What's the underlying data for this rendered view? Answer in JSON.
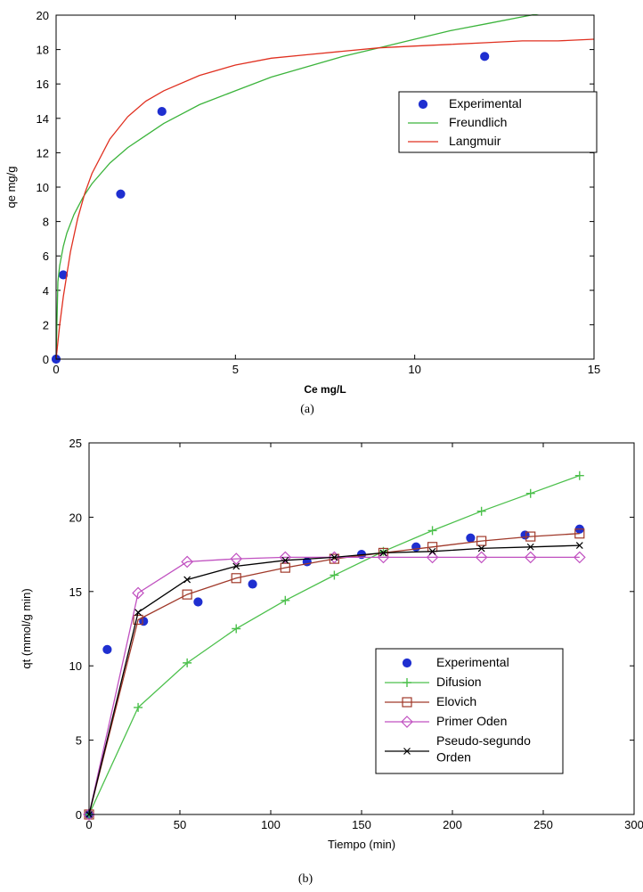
{
  "chart_data": [
    {
      "type": "scatter",
      "xlabel": "Ce mg/L",
      "ylabel": "qe mg/g",
      "xlim": [
        0,
        15
      ],
      "ylim": [
        0,
        20
      ],
      "xticks": [
        0,
        5,
        10,
        15
      ],
      "yticks": [
        0,
        2,
        4,
        6,
        8,
        10,
        12,
        14,
        16,
        18,
        20
      ],
      "caption": "(a)",
      "legend_position": "center-right",
      "series": [
        {
          "name": "Experimental",
          "kind": "points",
          "color": "#1f2fd0",
          "x": [
            0.0,
            0.2,
            1.8,
            2.95,
            11.95
          ],
          "y": [
            0.0,
            4.9,
            9.6,
            14.4,
            17.6
          ]
        },
        {
          "name": "Freundlich",
          "kind": "line",
          "color": "#3cb43c",
          "x": [
            0.0,
            0.05,
            0.1,
            0.2,
            0.3,
            0.5,
            0.75,
            1.0,
            1.5,
            2.0,
            2.5,
            3.0,
            4.0,
            5.0,
            6.0,
            7.0,
            8.0,
            9.0,
            10.0,
            11.0,
            12.0,
            13.0,
            14.0,
            15.0
          ],
          "y": [
            0.0,
            4.49,
            5.43,
            6.56,
            7.33,
            8.41,
            9.41,
            10.2,
            11.4,
            12.3,
            13.0,
            13.7,
            14.8,
            15.6,
            16.4,
            17.0,
            17.6,
            18.1,
            18.6,
            19.1,
            19.5,
            19.9,
            20.3,
            20.6
          ]
        },
        {
          "name": "Langmuir",
          "kind": "line",
          "color": "#e03020",
          "x": [
            0.0,
            0.1,
            0.2,
            0.4,
            0.6,
            0.8,
            1.0,
            1.5,
            2.0,
            2.5,
            3.0,
            4.0,
            5.0,
            6.0,
            7.0,
            8.0,
            9.0,
            10.0,
            11.0,
            12.0,
            13.0,
            14.0,
            15.0
          ],
          "y": [
            0.0,
            1.97,
            3.63,
            6.24,
            8.17,
            9.64,
            10.8,
            12.8,
            14.1,
            15.0,
            15.6,
            16.5,
            17.1,
            17.5,
            17.7,
            17.9,
            18.1,
            18.2,
            18.3,
            18.4,
            18.5,
            18.5,
            18.6
          ]
        }
      ]
    },
    {
      "type": "line",
      "xlabel": "Tiempo (min)",
      "ylabel": "qt (mmol/g min)",
      "xlim": [
        0,
        300
      ],
      "ylim": [
        0,
        25
      ],
      "xticks": [
        0,
        50,
        100,
        150,
        200,
        250,
        300
      ],
      "yticks": [
        0,
        5,
        10,
        15,
        20,
        25
      ],
      "caption": "(b)",
      "legend_position": "lower-right",
      "series": [
        {
          "name": "Experimental",
          "kind": "points",
          "marker": "dot",
          "color": "#1f2fd0",
          "x": [
            0,
            10,
            30,
            60,
            90,
            120,
            150,
            180,
            210,
            240,
            270
          ],
          "y": [
            0,
            11.1,
            13.0,
            14.3,
            15.5,
            17.0,
            17.5,
            18.0,
            18.6,
            18.8,
            19.2
          ]
        },
        {
          "name": "Difusion",
          "kind": "line",
          "marker": "plus",
          "color": "#4cc04c",
          "x": [
            0,
            27,
            54,
            81,
            108,
            135,
            162,
            189,
            216,
            243,
            270
          ],
          "y": [
            0,
            7.2,
            10.2,
            12.5,
            14.4,
            16.1,
            17.7,
            19.1,
            20.4,
            21.6,
            22.8
          ]
        },
        {
          "name": "Elovich",
          "kind": "line",
          "marker": "square",
          "color": "#a0392a",
          "x": [
            0,
            27,
            54,
            81,
            108,
            135,
            162,
            189,
            216,
            243,
            270
          ],
          "y": [
            0,
            13.1,
            14.8,
            15.9,
            16.6,
            17.2,
            17.6,
            18.0,
            18.4,
            18.7,
            18.9
          ]
        },
        {
          "name": "Primer Oden",
          "kind": "line",
          "marker": "diamond",
          "color": "#c050c0",
          "x": [
            0,
            27,
            54,
            81,
            108,
            135,
            162,
            189,
            216,
            243,
            270
          ],
          "y": [
            0,
            14.9,
            17.0,
            17.2,
            17.3,
            17.3,
            17.3,
            17.3,
            17.3,
            17.3,
            17.3
          ]
        },
        {
          "name": "Pseudo-segundo Orden",
          "legend_lines": [
            "Pseudo-segundo",
            "Orden"
          ],
          "kind": "line",
          "marker": "x",
          "color": "#000000",
          "x": [
            0,
            27,
            54,
            81,
            108,
            135,
            162,
            189,
            216,
            243,
            270
          ],
          "y": [
            0,
            13.6,
            15.8,
            16.7,
            17.1,
            17.3,
            17.6,
            17.7,
            17.9,
            18.0,
            18.1
          ]
        }
      ]
    }
  ]
}
